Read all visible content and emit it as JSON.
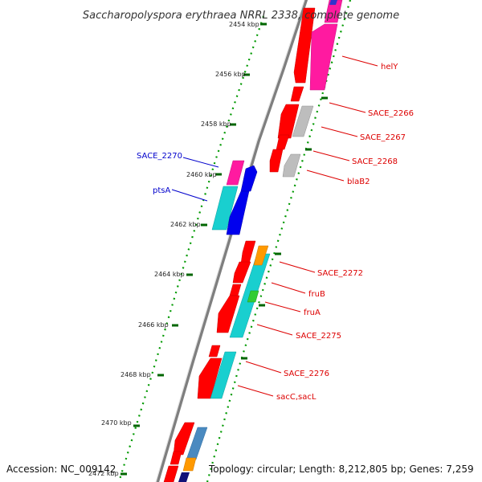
{
  "title": "Saccharopolyspora erythraea NRRL 2338, complete genome",
  "footer": {
    "accession": "Accession: NC_009142",
    "summary": "Topology: circular; Length: 8,212,805 bp; Genes: 7,259"
  },
  "ticks": [
    "2454 kbp",
    "2456 kbp",
    "2458 kbp",
    "2460 kbp",
    "2462 kbp",
    "2464 kbp",
    "2466 kbp",
    "2468 kbp",
    "2470 kbp",
    "2472 kbp"
  ],
  "genes_right": [
    "helY",
    "SACE_2266",
    "SACE_2267",
    "SACE_2268",
    "blaB2",
    "SACE_2272",
    "fruB",
    "fruA",
    "SACE_2275",
    "SACE_2276",
    "sacC,sacL"
  ],
  "genes_left": [
    "SACE_2270",
    "ptsA"
  ],
  "colors": {
    "red_cog": "#ff0000",
    "magenta_cog": "#ff1aa0",
    "grey_cog": "#b8b8b8",
    "cyan_cog": "#19cfcf",
    "blue_cog": "#0000ee",
    "orange_cog": "#ff9900",
    "green_cog": "#33cc33",
    "steel_cog": "#4a8ac0",
    "right_label": "#dd0000",
    "left_label": "#0000cc",
    "tick": "#006600",
    "backbone": "#7f7f7f"
  }
}
